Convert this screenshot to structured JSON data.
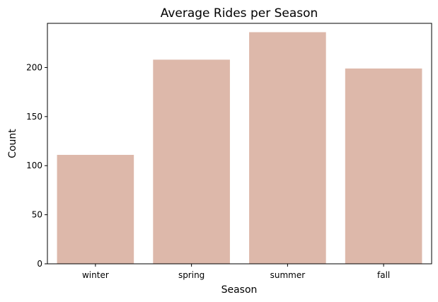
{
  "chart_data": {
    "type": "bar",
    "title": "Average Rides per Season",
    "xlabel": "Season",
    "ylabel": "Count",
    "categories": [
      "winter",
      "spring",
      "summer",
      "fall"
    ],
    "values": [
      111,
      208,
      236,
      199
    ],
    "ylim": [
      0,
      245
    ],
    "yticks": [
      0,
      50,
      100,
      150,
      200
    ],
    "bar_color": "#ddb8aa",
    "grid": false
  }
}
